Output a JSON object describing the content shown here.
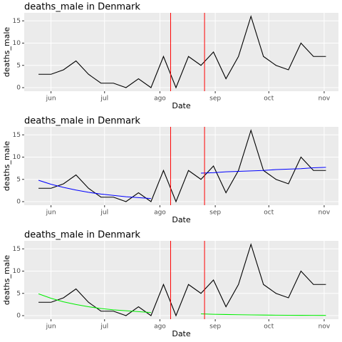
{
  "chart_data": [
    {
      "type": "line",
      "title": "deaths_male in Denmark",
      "xlabel": "Date",
      "ylabel": "deaths_male",
      "x": [
        145,
        152,
        159,
        166,
        173,
        180,
        187,
        194,
        201,
        208,
        215,
        222,
        229,
        236,
        243,
        250,
        257,
        264,
        271,
        278,
        285,
        292,
        299,
        306
      ],
      "xlim": [
        137,
        313
      ],
      "xticks": [
        {
          "value": 152,
          "label": "jun"
        },
        {
          "value": 182,
          "label": "jul"
        },
        {
          "value": 213,
          "label": "ago"
        },
        {
          "value": 244,
          "label": "sep"
        },
        {
          "value": 274,
          "label": "oct"
        },
        {
          "value": 305,
          "label": "nov"
        }
      ],
      "ylim": [
        -0.8,
        16.8
      ],
      "yticks": [
        0,
        5,
        10,
        15
      ],
      "grid": true,
      "series": [
        {
          "color": "#000000",
          "values": [
            3,
            3,
            4,
            6,
            3,
            1,
            1,
            0,
            2,
            0,
            7,
            0,
            7,
            5,
            8,
            2,
            7,
            16,
            7,
            5,
            4,
            10,
            7,
            7
          ]
        }
      ],
      "vlines": [
        219,
        238
      ],
      "vline_color": "#ff0000"
    },
    {
      "type": "line",
      "title": "deaths_male in Denmark",
      "xlabel": "Date",
      "ylabel": "deaths_male",
      "x": [
        145,
        152,
        159,
        166,
        173,
        180,
        187,
        194,
        201,
        208,
        215,
        222,
        229,
        236,
        243,
        250,
        257,
        264,
        271,
        278,
        285,
        292,
        299,
        306
      ],
      "xlim": [
        137,
        313
      ],
      "xticks": [
        {
          "value": 152,
          "label": "jun"
        },
        {
          "value": 182,
          "label": "jul"
        },
        {
          "value": 213,
          "label": "ago"
        },
        {
          "value": 244,
          "label": "sep"
        },
        {
          "value": 274,
          "label": "oct"
        },
        {
          "value": 305,
          "label": "nov"
        }
      ],
      "ylim": [
        -0.8,
        16.8
      ],
      "yticks": [
        0,
        5,
        10,
        15
      ],
      "grid": true,
      "series": [
        {
          "color": "#000000",
          "values": [
            3,
            3,
            4,
            6,
            3,
            1,
            1,
            0,
            2,
            0,
            7,
            0,
            7,
            5,
            8,
            2,
            7,
            16,
            7,
            5,
            4,
            10,
            7,
            7
          ]
        },
        {
          "color": "#0000ff",
          "values": [
            4.8,
            3.9,
            3.2,
            2.6,
            2.1,
            1.7,
            1.4,
            1.1,
            0.9,
            0.7,
            null,
            null,
            null,
            6.4,
            6.5,
            6.7,
            6.8,
            6.9,
            7.0,
            7.2,
            7.3,
            7.4,
            7.6,
            7.7
          ]
        }
      ],
      "vlines": [
        219,
        238
      ],
      "vline_color": "#ff0000"
    },
    {
      "type": "line",
      "title": "deaths_male in Denmark",
      "xlabel": "Date",
      "ylabel": "deaths_male",
      "x": [
        145,
        152,
        159,
        166,
        173,
        180,
        187,
        194,
        201,
        208,
        215,
        222,
        229,
        236,
        243,
        250,
        257,
        264,
        271,
        278,
        285,
        292,
        299,
        306
      ],
      "xlim": [
        137,
        313
      ],
      "xticks": [
        {
          "value": 152,
          "label": "jun"
        },
        {
          "value": 182,
          "label": "jul"
        },
        {
          "value": 213,
          "label": "ago"
        },
        {
          "value": 244,
          "label": "sep"
        },
        {
          "value": 274,
          "label": "oct"
        },
        {
          "value": 305,
          "label": "nov"
        }
      ],
      "ylim": [
        -0.8,
        16.8
      ],
      "yticks": [
        0,
        5,
        10,
        15
      ],
      "grid": true,
      "series": [
        {
          "color": "#000000",
          "values": [
            3,
            3,
            4,
            6,
            3,
            1,
            1,
            0,
            2,
            0,
            7,
            0,
            7,
            5,
            8,
            2,
            7,
            16,
            7,
            5,
            4,
            10,
            7,
            7
          ]
        },
        {
          "color": "#00ee00",
          "values": [
            4.9,
            3.9,
            3.1,
            2.5,
            2.0,
            1.6,
            1.3,
            1.1,
            0.9,
            0.7,
            null,
            null,
            null,
            0.4,
            0.3,
            0.25,
            0.2,
            0.16,
            0.13,
            0.1,
            0.08,
            0.07,
            0.06,
            0.05
          ]
        }
      ],
      "vlines": [
        219,
        238
      ],
      "vline_color": "#ff0000"
    }
  ]
}
